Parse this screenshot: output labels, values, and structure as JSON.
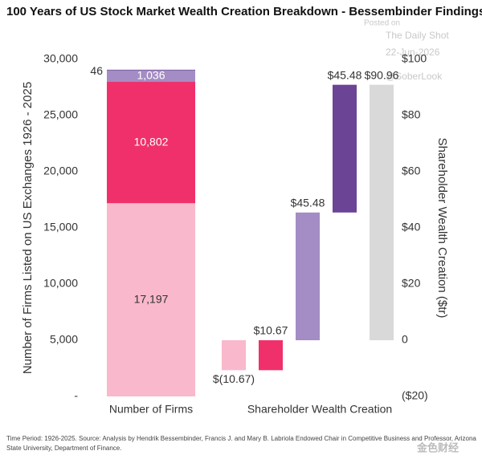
{
  "chart_data": [
    {
      "type": "stacked_bar",
      "title": "100 Years of US Stock Market Wealth Creation Breakdown - Bessembinder Findings",
      "ylabel": "Number of Firms Listed on US Exchanges  1926 - 2025",
      "categories": [
        "Number of Firms"
      ],
      "series": [
        {
          "color": "#f9b8cb",
          "values": [
            17197
          ],
          "value_labels": [
            "17,197"
          ]
        },
        {
          "color": "#f0306a",
          "values": [
            10802
          ],
          "value_labels": [
            "10,802"
          ]
        },
        {
          "color": "#a48cc4",
          "values": [
            1036
          ],
          "value_labels": [
            "1,036"
          ]
        },
        {
          "color": "#6b4496",
          "values": [
            46
          ],
          "value_labels": [
            "46"
          ]
        }
      ],
      "ylim": [
        0,
        30000
      ],
      "yticks": [
        {
          "value": 0,
          "label": "-"
        },
        {
          "value": 5000,
          "label": "5,000"
        },
        {
          "value": 10000,
          "label": "10,000"
        },
        {
          "value": 15000,
          "label": "15,000"
        },
        {
          "value": 20000,
          "label": "20,000"
        },
        {
          "value": 25000,
          "label": "25,000"
        },
        {
          "value": 30000,
          "label": "30,000"
        }
      ]
    },
    {
      "type": "waterfall",
      "xlabel": "Shareholder Wealth Creation",
      "y2label": "Shareholder Wealth Creation ($tr)",
      "values": [
        -10.67,
        10.67,
        45.48,
        45.48,
        90.96
      ],
      "value_labels": [
        "$(10.67)",
        "$10.67",
        "$45.48",
        "$45.48",
        "$90.96"
      ],
      "measure": [
        "relative",
        "relative",
        "relative",
        "relative",
        "total"
      ],
      "colors": [
        "#f9b8cb",
        "#f0306a",
        "#a48cc4",
        "#6b4496",
        "#d9d9d9"
      ],
      "y2lim": [
        -20,
        100
      ],
      "y2ticks": [
        {
          "value": -20,
          "label": "($20)"
        },
        0,
        {
          "value": 20,
          "label": "$20"
        },
        {
          "value": 40,
          "label": "$40"
        },
        {
          "value": 60,
          "label": "$60"
        },
        {
          "value": 80,
          "label": "$80"
        },
        {
          "value": 100,
          "label": "$100"
        }
      ]
    }
  ],
  "watermark": [
    "Posted on",
    "The Daily Shot",
    "22-Jun-2026",
    "@SoberLook"
  ],
  "source": [
    "Time Period: 1926-2025. Source: Analysis by Hendrik Bessembinder, Francis J. and Mary B. Labriola Endowed Chair in Competitive Business and Professor, Arizona",
    "State University, Department of Finance."
  ],
  "logo": "金色财经"
}
